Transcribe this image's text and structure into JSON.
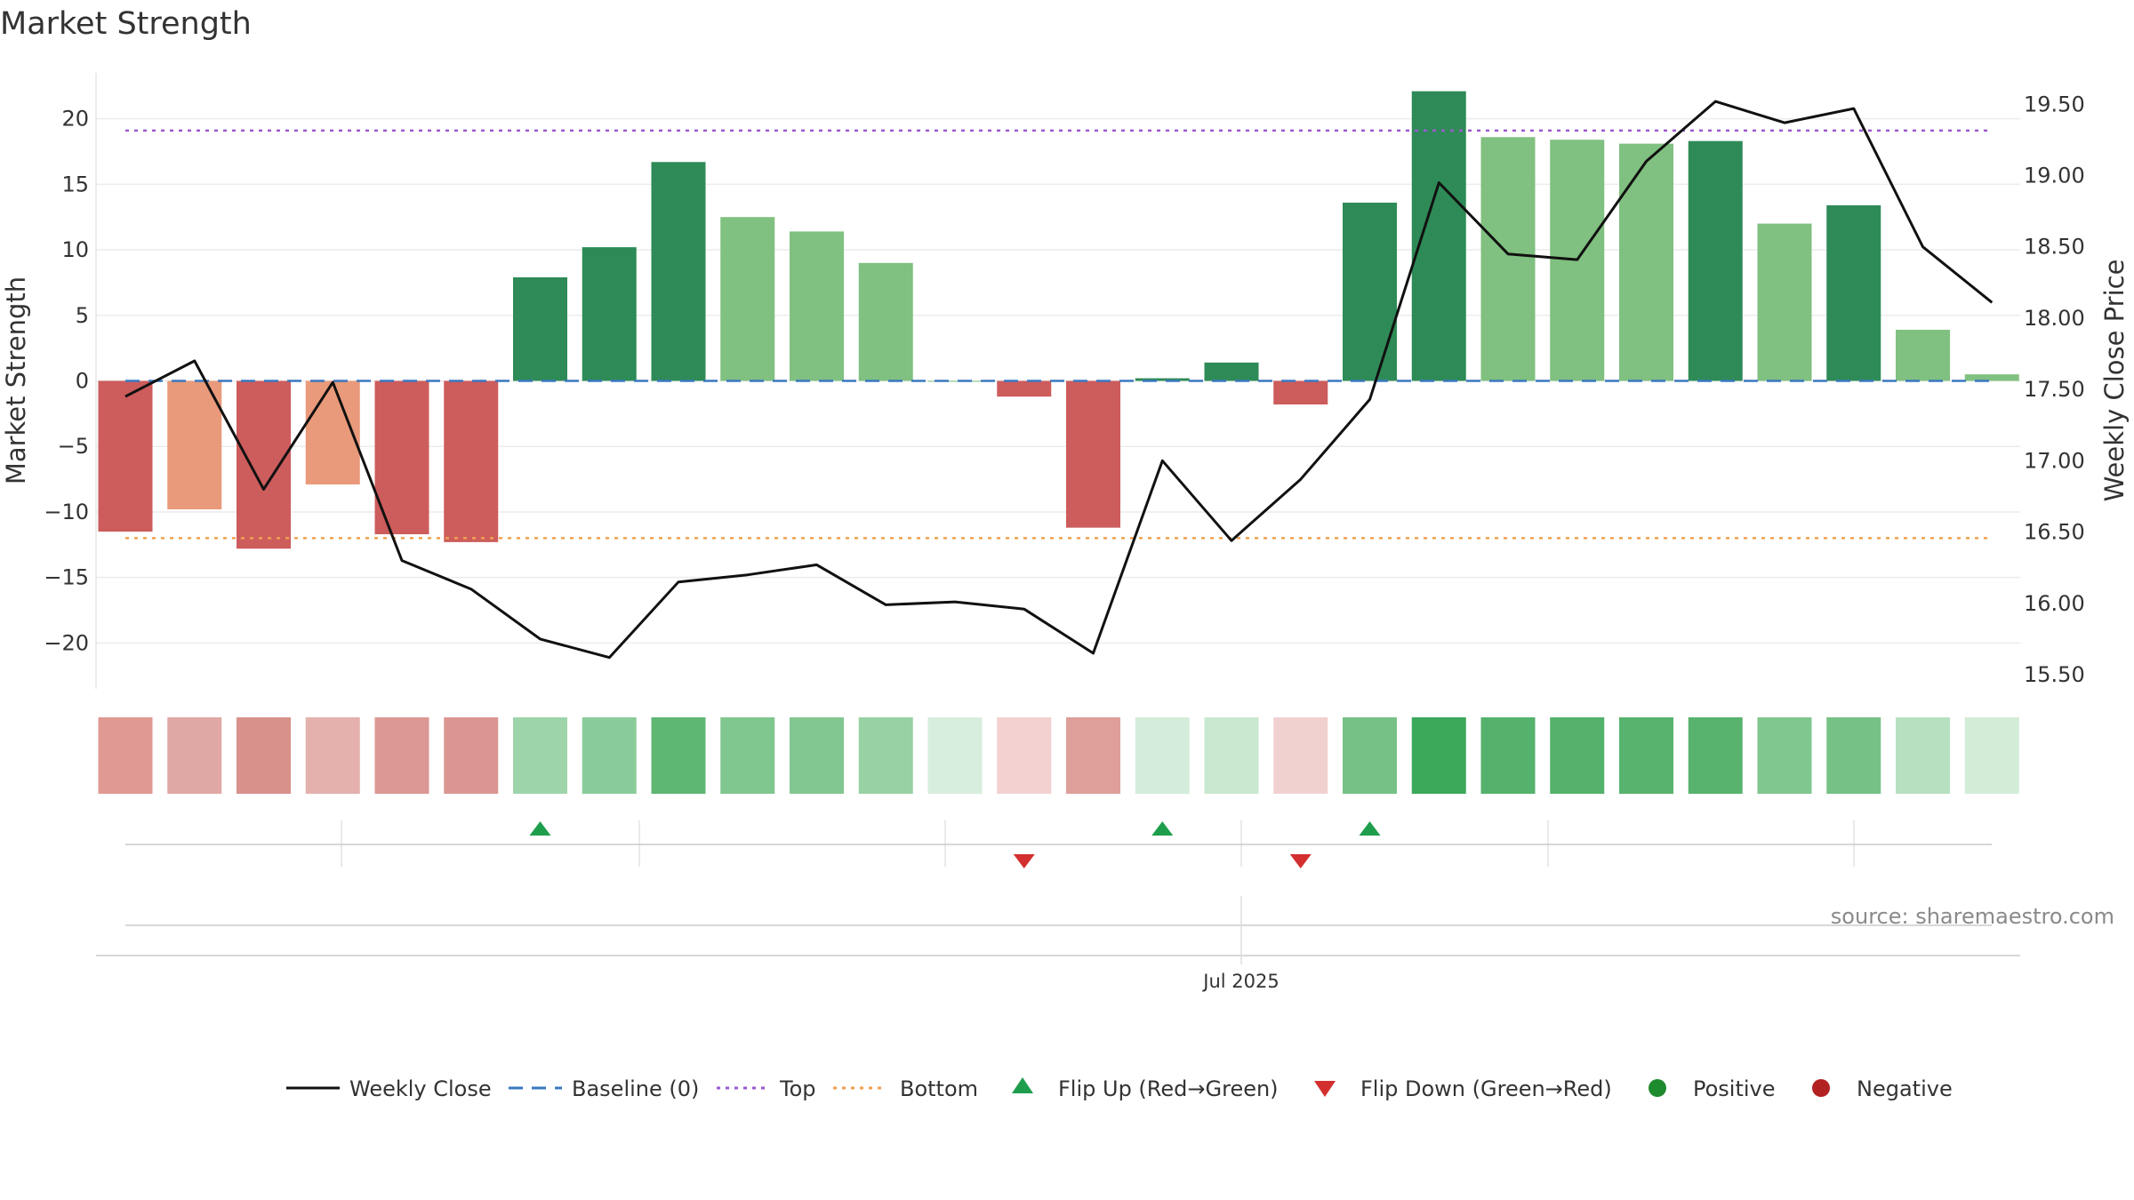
{
  "chart_data": {
    "type": "bar",
    "title": "Market Strength",
    "ylabel": "Market Strength",
    "y2label": "Weekly Close Price",
    "ylim": [
      -23.5,
      23.5
    ],
    "y2lim": [
      15.4,
      19.72
    ],
    "yticks": [
      20,
      15,
      10,
      5,
      0,
      -5,
      -10,
      -15,
      -20
    ],
    "ytick_labels": [
      "20",
      "15",
      "10",
      "5",
      "0",
      "−5",
      "−10",
      "−15",
      "−20"
    ],
    "y2ticks": [
      19.5,
      19.0,
      18.5,
      18.0,
      17.5,
      17.0,
      16.5,
      16.0,
      15.5
    ],
    "y2tick_labels": [
      "19.50",
      "19.00",
      "18.50",
      "18.00",
      "17.50",
      "17.00",
      "16.50",
      "16.00",
      "15.50"
    ],
    "xtick_label": "Jul 2025",
    "xtick_index": 16.25,
    "grid": true,
    "series": [
      {
        "name": "Market Strength",
        "values": [
          -11.5,
          -9.8,
          -12.8,
          -7.9,
          -11.7,
          -12.3,
          7.9,
          10.2,
          16.7,
          12.5,
          11.4,
          9.0,
          0.0,
          -1.2,
          -11.2,
          0.2,
          1.4,
          -1.8,
          13.6,
          22.1,
          18.6,
          18.4,
          18.1,
          18.3,
          12.0,
          13.4,
          3.9,
          0.5
        ],
        "colors": [
          "#cd5c5c",
          "#e99a7a",
          "#cd5c5c",
          "#e99a7a",
          "#cd5c5c",
          "#cd5c5c",
          "#2e8b57",
          "#2e8b57",
          "#2e8b57",
          "#80c080",
          "#80c080",
          "#80c080",
          "#80c080",
          "#cd5c5c",
          "#cd5c5c",
          "#2e8b57",
          "#2e8b57",
          "#cd5c5c",
          "#2e8b57",
          "#2e8b57",
          "#80c080",
          "#80c080",
          "#80c080",
          "#2e8b57",
          "#80c080",
          "#2e8b57",
          "#80c080",
          "#80c080"
        ]
      },
      {
        "name": "Weekly Close",
        "axis": "right",
        "values": [
          17.45,
          17.7,
          16.8,
          17.55,
          16.3,
          16.1,
          15.75,
          15.62,
          16.15,
          16.2,
          16.27,
          15.99,
          16.01,
          15.96,
          15.65,
          17.0,
          16.44,
          16.87,
          17.43,
          18.95,
          18.45,
          18.41,
          19.1,
          19.52,
          19.37,
          19.47,
          18.5,
          18.11
        ],
        "color": "#111111"
      },
      {
        "name": "Baseline (0)",
        "value": 0,
        "color": "#3a78c0"
      },
      {
        "name": "Top",
        "value": 19.1,
        "color": "#9b59d0"
      },
      {
        "name": "Bottom",
        "value": -12.0,
        "color": "#f0a050"
      }
    ],
    "heat_strip": [
      "#e09a93",
      "#e0a8a4",
      "#d9918c",
      "#e4b1ad",
      "#dc9894",
      "#dc9692",
      "#9ed4aa",
      "#8acc99",
      "#5fb774",
      "#7fc68f",
      "#82c791",
      "#97d1a4",
      "#d7eedc",
      "#f2d1d0",
      "#de9f9b",
      "#d3edda",
      "#c9e8d0",
      "#f1d1d0",
      "#76c286",
      "#3ba85a",
      "#55b26c",
      "#53b16b",
      "#58b36e",
      "#57b36e",
      "#7fc68f",
      "#76c286",
      "#b7e0c1",
      "#d2ecd8"
    ],
    "flip_up": [
      6,
      15,
      18
    ],
    "flip_down": [
      13,
      17
    ],
    "flip_up_color": "#1e9e4c",
    "flip_down_color": "#d32f2f",
    "legend": {
      "placement": "bottom-center",
      "entries": [
        {
          "label": "Weekly Close",
          "symbol": "line",
          "color": "#111111"
        },
        {
          "label": "Baseline (0)",
          "symbol": "dash",
          "color": "#3a78c0"
        },
        {
          "label": "Top",
          "symbol": "dot",
          "color": "#9b59d0"
        },
        {
          "label": "Bottom",
          "symbol": "dot",
          "color": "#f0a050"
        },
        {
          "label": "Flip Up (Red→Green)",
          "symbol": "triangle-up",
          "color": "#1e9e4c"
        },
        {
          "label": "Flip Down (Green→Red)",
          "symbol": "triangle-down",
          "color": "#d32f2f"
        },
        {
          "label": "Positive",
          "symbol": "circle",
          "color": "#1e8a2e"
        },
        {
          "label": "Negative",
          "symbol": "circle",
          "color": "#b22222"
        }
      ]
    },
    "source": "source: sharemaestro.com"
  }
}
